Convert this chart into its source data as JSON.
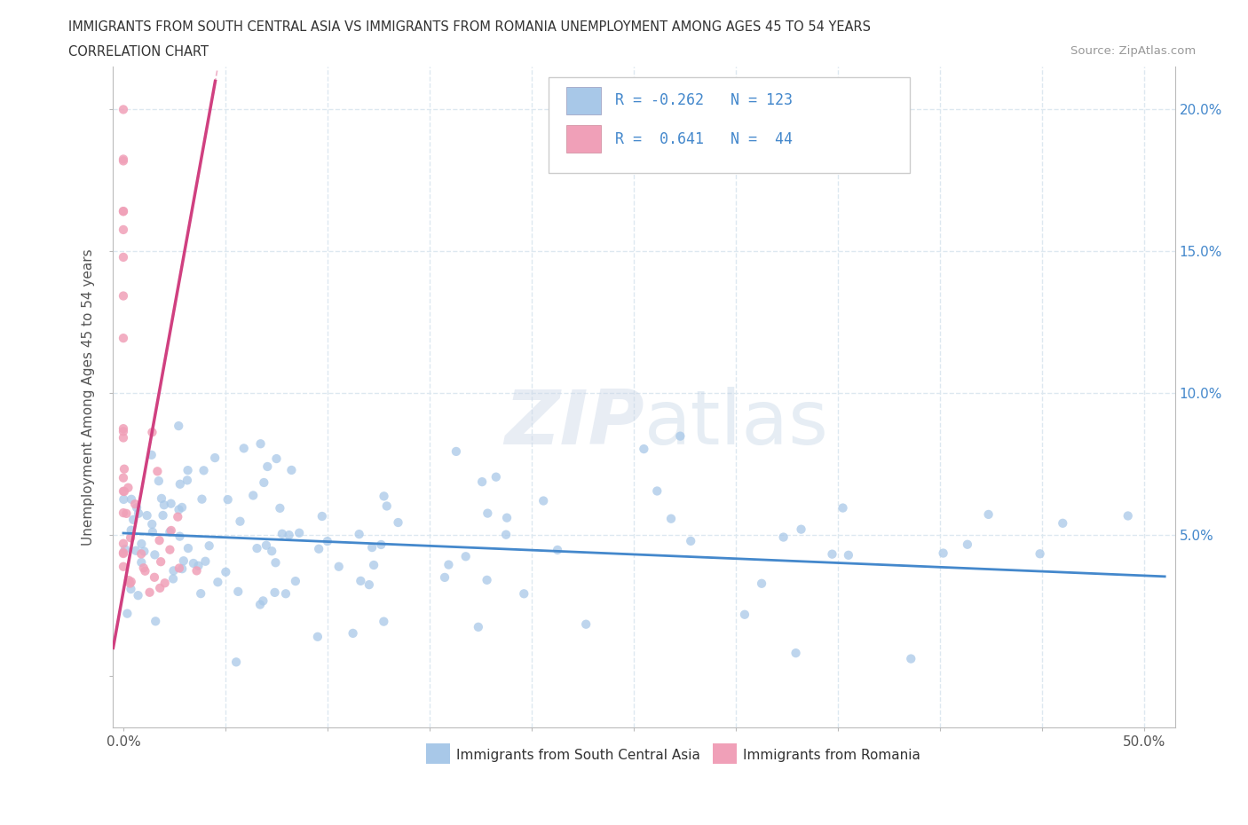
{
  "title_line1": "IMMIGRANTS FROM SOUTH CENTRAL ASIA VS IMMIGRANTS FROM ROMANIA UNEMPLOYMENT AMONG AGES 45 TO 54 YEARS",
  "title_line2": "CORRELATION CHART",
  "source_text": "Source: ZipAtlas.com",
  "ylabel": "Unemployment Among Ages 45 to 54 years",
  "xlim": [
    -0.005,
    0.515
  ],
  "ylim": [
    -0.018,
    0.215
  ],
  "xticks": [
    0.0,
    0.05,
    0.1,
    0.15,
    0.2,
    0.25,
    0.3,
    0.35,
    0.4,
    0.45,
    0.5
  ],
  "yticks": [
    0.0,
    0.05,
    0.1,
    0.15,
    0.2
  ],
  "color_blue": "#a8c8e8",
  "color_pink": "#f0a0b8",
  "trend_blue": "#4488cc",
  "trend_pink": "#d04080",
  "trend_pink_dashed": "#e890b0",
  "R_blue": -0.262,
  "N_blue": 123,
  "R_pink": 0.641,
  "N_pink": 44,
  "legend_label_blue": "Immigrants from South Central Asia",
  "legend_label_pink": "Immigrants from Romania",
  "watermark_zip": "ZIP",
  "watermark_atlas": "atlas",
  "background_color": "#ffffff",
  "grid_color": "#dde8f0",
  "axis_color": "#bbbbbb",
  "tick_color": "#4488cc",
  "title_color": "#333333"
}
